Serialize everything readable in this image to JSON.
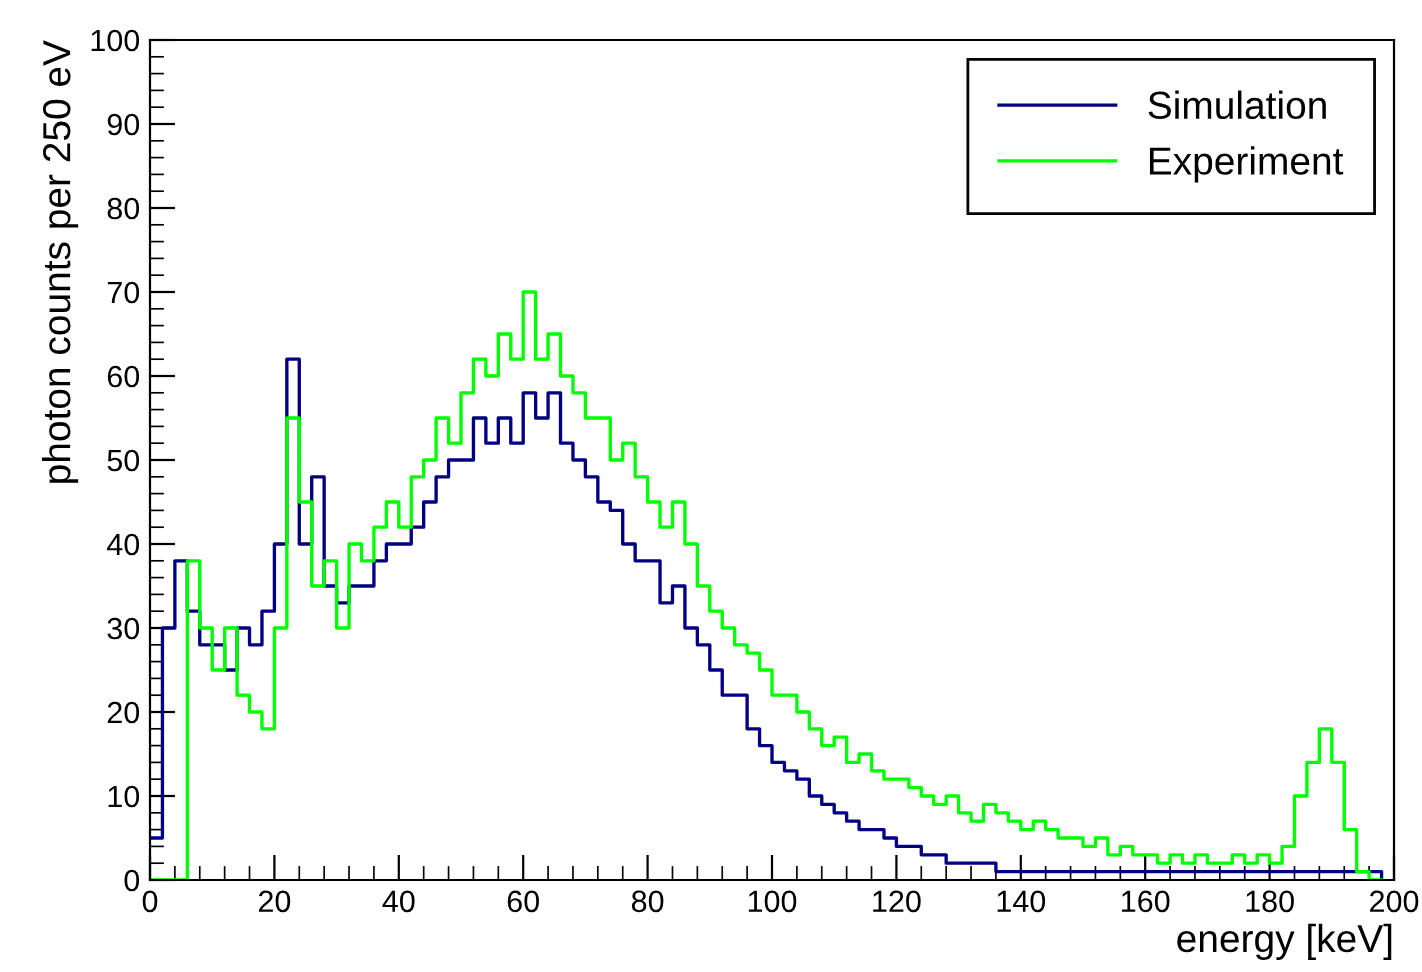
{
  "chart_data": {
    "type": "step",
    "xlabel": "energy [keV]",
    "ylabel": "photon counts per 250 eV",
    "x": [
      0,
      2,
      4,
      6,
      8,
      10,
      12,
      14,
      16,
      18,
      20,
      22,
      24,
      26,
      28,
      30,
      32,
      34,
      36,
      38,
      40,
      42,
      44,
      46,
      48,
      50,
      52,
      54,
      56,
      58,
      60,
      62,
      64,
      66,
      68,
      70,
      72,
      74,
      76,
      78,
      80,
      82,
      84,
      86,
      88,
      90,
      92,
      94,
      96,
      98,
      100,
      102,
      104,
      106,
      108,
      110,
      112,
      114,
      116,
      118,
      120,
      122,
      124,
      126,
      128,
      130,
      132,
      134,
      136,
      138,
      140,
      142,
      144,
      146,
      148,
      150,
      152,
      154,
      156,
      158,
      160,
      162,
      164,
      166,
      168,
      170,
      172,
      174,
      176,
      178,
      180,
      182,
      184,
      186,
      188,
      190,
      192,
      194,
      196,
      198
    ],
    "series": [
      {
        "name": "Simulation",
        "color": "#000080",
        "values": [
          5,
          30,
          38,
          32,
          28,
          28,
          25,
          30,
          28,
          32,
          40,
          62,
          40,
          48,
          35,
          33,
          35,
          35,
          38,
          40,
          40,
          42,
          45,
          48,
          50,
          50,
          55,
          52,
          55,
          52,
          58,
          55,
          58,
          52,
          50,
          48,
          45,
          44,
          40,
          38,
          38,
          33,
          35,
          30,
          28,
          25,
          22,
          22,
          18,
          16,
          14,
          13,
          12,
          10,
          9,
          8,
          7,
          6,
          6,
          5,
          4,
          4,
          3,
          3,
          2,
          2,
          2,
          2,
          1,
          1,
          1,
          1,
          1,
          1,
          1,
          1,
          1,
          1,
          1,
          1,
          1,
          1,
          1,
          1,
          1,
          1,
          1,
          1,
          1,
          1,
          1,
          1,
          1,
          1,
          1,
          1,
          1,
          1,
          1,
          0
        ]
      },
      {
        "name": "Experiment",
        "color": "#00ff00",
        "values": [
          0,
          0,
          0,
          38,
          30,
          25,
          30,
          22,
          20,
          18,
          30,
          55,
          45,
          35,
          38,
          30,
          40,
          38,
          42,
          45,
          42,
          48,
          50,
          55,
          52,
          58,
          62,
          60,
          65,
          62,
          70,
          62,
          65,
          60,
          58,
          55,
          55,
          50,
          52,
          48,
          45,
          42,
          45,
          40,
          35,
          32,
          30,
          28,
          27,
          25,
          22,
          22,
          20,
          18,
          16,
          17,
          14,
          15,
          13,
          12,
          12,
          11,
          10,
          9,
          10,
          8,
          7,
          9,
          8,
          7,
          6,
          7,
          6,
          5,
          5,
          4,
          5,
          3,
          4,
          3,
          3,
          2,
          3,
          2,
          3,
          2,
          2,
          3,
          2,
          3,
          2,
          4,
          10,
          14,
          18,
          14,
          6,
          1,
          0,
          0
        ]
      }
    ],
    "xlim": [
      0,
      200
    ],
    "xticks": [
      0,
      20,
      40,
      60,
      80,
      100,
      120,
      140,
      160,
      180,
      200
    ],
    "ylim": [
      0,
      100
    ],
    "yticks": [
      0,
      10,
      20,
      30,
      40,
      50,
      60,
      70,
      80,
      90,
      100
    ],
    "legend": "top right",
    "grid": false
  }
}
